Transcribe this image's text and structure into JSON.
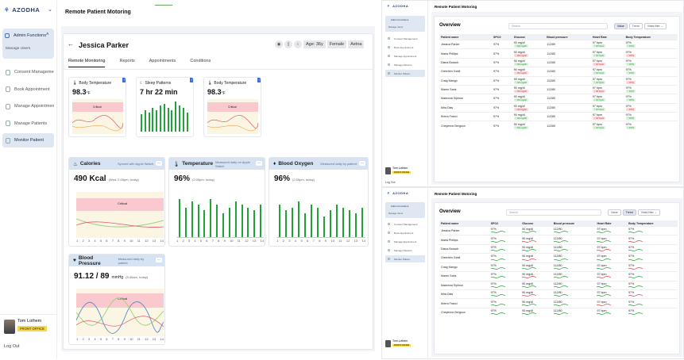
{
  "app": {
    "brand": "AZODHA",
    "page_title": "Remote Patient Motoring"
  },
  "sidebar": {
    "group_label": "Admin Functions",
    "sub_item": "Manage Users",
    "items": [
      {
        "label": "Consent Management",
        "icon": "document-icon"
      },
      {
        "label": "Book Appointment",
        "icon": "calendar-icon"
      },
      {
        "label": "Manage Appointment",
        "icon": "calendar-edit-icon"
      },
      {
        "label": "Manage Patients",
        "icon": "users-icon"
      },
      {
        "label": "Monitor Patient",
        "icon": "monitor-icon",
        "active": true
      }
    ],
    "user": {
      "name": "Tom Lothem",
      "role": "FRONT OFFICE"
    },
    "logout": "Log Out"
  },
  "patient": {
    "name": "Jessica Parker",
    "age": "Age: 36y",
    "gender": "Female",
    "insurer": "Aetna",
    "tabs": [
      "Remote Monitoring",
      "Reports",
      "Appointments",
      "Conditions"
    ]
  },
  "mini_cards": [
    {
      "label": "Body Temperature",
      "value": "98.3",
      "unit": "°F",
      "band": "Critical"
    },
    {
      "label": "Sleep Patterns",
      "value": "7 hr 22 min",
      "unit": "",
      "bars": [
        8,
        10,
        9,
        11,
        10,
        12,
        13,
        11,
        10,
        14,
        12,
        11,
        9
      ]
    },
    {
      "label": "Body Temperature",
      "value": "98.3",
      "unit": "°F",
      "band": "Critical"
    }
  ],
  "cards": {
    "calories": {
      "label": "Calories",
      "source": "Synced with Apple Watch",
      "value": "490 Kcal",
      "time": "(Wed, 2:05pm, today)",
      "band": "Critical"
    },
    "temperature": {
      "label": "Temperature",
      "source": "Measured daily on Apple Watch",
      "value": "96%",
      "time": "(2:05pm, today)",
      "values": [
        98,
        95,
        97,
        96,
        94,
        98,
        96,
        93,
        95,
        97,
        96,
        95,
        94,
        96
      ]
    },
    "blood_oxygen": {
      "label": "Blood Oxygen",
      "source": "Measured daily by patient",
      "value": "96%",
      "time": "(2:05pm, today)",
      "values": [
        96,
        94,
        95,
        97,
        93,
        96,
        95,
        92,
        94,
        96,
        95,
        94,
        93,
        95
      ]
    },
    "blood_pressure": {
      "label": "Blood Pressure",
      "source": "Measured daily by patient",
      "value": "91.12 / 89",
      "unit": "mmHg",
      "time": "(9:45am, today)",
      "band": "Critical"
    }
  },
  "axis_days": [
    "1",
    "2",
    "3",
    "4",
    "5",
    "6",
    "7",
    "8",
    "9",
    "10",
    "11",
    "12",
    "13",
    "14"
  ],
  "overview": {
    "title": "Overview",
    "search_placeholder": "Search",
    "toggle": [
      "Value",
      "Trend"
    ],
    "filter": "Vitals filter",
    "columns": [
      "Patient name",
      "SPO2",
      "Glucose",
      "Blood pressure",
      "Heart Rate",
      "Body Temperature"
    ],
    "rows": [
      {
        "name": "Jessica Parker",
        "spo2": "97%",
        "glucose": "90 mg/dl",
        "glu_flag": "g",
        "bp": "112/80",
        "hr": "97 bpm",
        "hr_flag": "g",
        "temp": "97%",
        "temp_flag": "g"
      },
      {
        "name": "Maria Phillips",
        "spo2": "97%",
        "glucose": "90 mg/dl",
        "glu_flag": "r",
        "bp": "112/80",
        "hr": "97 bpm",
        "hr_flag": "g",
        "temp": "97%",
        "temp_flag": "r"
      },
      {
        "name": "Diana Bossoh",
        "spo2": "97%",
        "glucose": "90 mg/dl",
        "glu_flag": "g",
        "bp": "112/80",
        "hr": "97 bpm",
        "hr_flag": "r",
        "temp": "97%",
        "temp_flag": "g"
      },
      {
        "name": "Gretchen Geidt",
        "spo2": "97%",
        "glucose": "90 mg/dl",
        "glu_flag": "r",
        "bp": "112/80",
        "hr": "97 bpm",
        "hr_flag": "g",
        "temp": "97%",
        "temp_flag": "g"
      },
      {
        "name": "Craig Mango",
        "spo2": "97%",
        "glucose": "90 mg/dl",
        "glu_flag": "g",
        "bp": "112/80",
        "hr": "97 bpm",
        "hr_flag": "g",
        "temp": "97%",
        "temp_flag": "r"
      },
      {
        "name": "Maren Saris",
        "spo2": "97%",
        "glucose": "90 mg/dl",
        "glu_flag": "r",
        "bp": "112/80",
        "hr": "97 bpm",
        "hr_flag": "r",
        "temp": "97%",
        "temp_flag": "g"
      },
      {
        "name": "Makenna Siphron",
        "spo2": "97%",
        "glucose": "90 mg/dl",
        "glu_flag": "g",
        "bp": "112/80",
        "hr": "97 bpm",
        "hr_flag": "g",
        "temp": "97%",
        "temp_flag": "g"
      },
      {
        "name": "Mira Dias",
        "spo2": "97%",
        "glucose": "90 mg/dl",
        "glu_flag": "r",
        "bp": "112/80",
        "hr": "97 bpm",
        "hr_flag": "g",
        "temp": "97%",
        "temp_flag": "r"
      },
      {
        "name": "Kierra Franci",
        "spo2": "97%",
        "glucose": "90 mg/dl",
        "glu_flag": "g",
        "bp": "112/80",
        "hr": "97 bpm",
        "hr_flag": "r",
        "temp": "97%",
        "temp_flag": "g"
      },
      {
        "name": "Cheyenne Bergson",
        "spo2": "97%",
        "glucose": "90 mg/dl",
        "glu_flag": "g",
        "bp": "112/80",
        "hr": "97 bpm",
        "hr_flag": "g",
        "temp": "97%",
        "temp_flag": "g"
      }
    ]
  },
  "colors": {
    "accent": "#3b6fd8",
    "green": "#21a33a",
    "critical_band": "#f9c9cf",
    "card_header": "#d6e3f3",
    "active_nav": "#dfe7f2"
  }
}
